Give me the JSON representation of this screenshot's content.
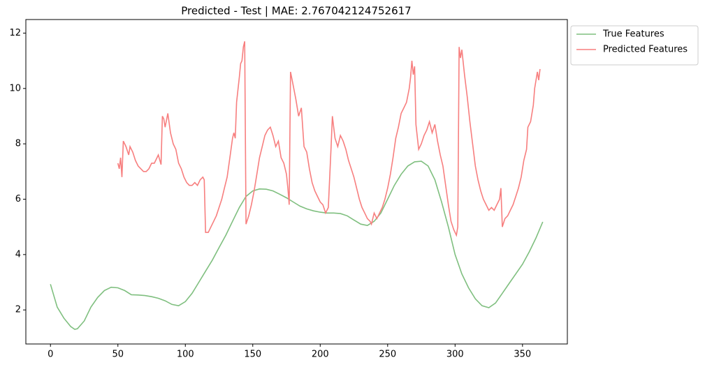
{
  "chart_data": {
    "type": "line",
    "title": "Predicted - Test | MAE: 2.767042124752617",
    "xlim": [
      -18.25,
      383.25
    ],
    "ylim": [
      0.77,
      12.49
    ],
    "xticks": [
      0,
      50,
      100,
      150,
      200,
      250,
      300,
      350
    ],
    "yticks": [
      2,
      4,
      6,
      8,
      10,
      12
    ],
    "legend": "upper-right-outside",
    "series": [
      {
        "name": "True Features",
        "color": "#7fbf7f",
        "x": [
          0,
          5,
          10,
          15,
          18,
          20,
          25,
          30,
          35,
          40,
          45,
          50,
          55,
          60,
          65,
          70,
          75,
          80,
          85,
          90,
          95,
          100,
          105,
          110,
          115,
          120,
          125,
          130,
          135,
          140,
          145,
          150,
          155,
          160,
          165,
          170,
          175,
          180,
          185,
          190,
          195,
          200,
          205,
          210,
          215,
          220,
          225,
          230,
          235,
          240,
          245,
          250,
          255,
          260,
          265,
          270,
          275,
          280,
          285,
          290,
          295,
          300,
          305,
          310,
          315,
          320,
          325,
          330,
          335,
          340,
          345,
          350,
          355,
          360,
          365
        ],
        "values": [
          2.93,
          2.1,
          1.7,
          1.4,
          1.3,
          1.32,
          1.6,
          2.1,
          2.45,
          2.7,
          2.82,
          2.8,
          2.7,
          2.55,
          2.54,
          2.52,
          2.48,
          2.42,
          2.33,
          2.2,
          2.15,
          2.3,
          2.6,
          3.0,
          3.4,
          3.8,
          4.25,
          4.7,
          5.2,
          5.7,
          6.1,
          6.3,
          6.37,
          6.36,
          6.3,
          6.18,
          6.05,
          5.9,
          5.75,
          5.65,
          5.58,
          5.53,
          5.5,
          5.5,
          5.48,
          5.4,
          5.25,
          5.1,
          5.05,
          5.2,
          5.5,
          6.0,
          6.5,
          6.9,
          7.2,
          7.35,
          7.37,
          7.2,
          6.7,
          5.9,
          5.0,
          4.0,
          3.3,
          2.8,
          2.4,
          2.15,
          2.08,
          2.25,
          2.6,
          2.95,
          3.3,
          3.65,
          4.1,
          4.6,
          5.18
        ]
      },
      {
        "name": "Predicted Features",
        "color": "#f77f7f",
        "x": [
          50,
          51,
          52,
          53,
          54,
          56,
          58,
          59,
          61,
          63,
          65,
          67,
          69,
          71,
          73,
          75,
          77,
          79,
          80,
          82,
          83,
          84,
          85,
          87,
          89,
          91,
          93,
          95,
          97,
          99,
          101,
          103,
          105,
          107,
          109,
          111,
          113,
          114,
          115,
          117,
          119,
          121,
          123,
          125,
          127,
          129,
          131,
          133,
          135,
          136,
          137,
          138,
          140,
          141,
          142,
          143,
          144,
          145,
          147,
          149,
          151,
          153,
          155,
          157,
          159,
          161,
          163,
          165,
          167,
          169,
          171,
          173,
          175,
          176,
          177,
          178,
          180,
          182,
          184,
          186,
          188,
          190,
          192,
          194,
          196,
          198,
          200,
          202,
          204,
          206,
          208,
          209,
          211,
          213,
          215,
          217,
          219,
          221,
          223,
          225,
          227,
          229,
          231,
          233,
          235,
          237,
          238,
          240,
          242,
          244,
          246,
          248,
          250,
          252,
          254,
          256,
          258,
          260,
          262,
          264,
          266,
          267,
          268,
          269,
          270,
          271,
          273,
          275,
          277,
          279,
          281,
          283,
          285,
          287,
          289,
          291,
          293,
          295,
          297,
          299,
          301,
          302,
          303,
          304,
          305,
          307,
          309,
          311,
          313,
          315,
          317,
          319,
          321,
          323,
          325,
          327,
          329,
          331,
          333,
          334,
          335,
          337,
          339,
          341,
          343,
          345,
          347,
          349,
          351,
          353,
          354,
          356,
          358,
          359,
          361,
          362,
          363
        ],
        "values": [
          7.3,
          7.1,
          7.5,
          6.8,
          8.1,
          7.9,
          7.6,
          7.9,
          7.7,
          7.4,
          7.2,
          7.1,
          7.0,
          7.0,
          7.1,
          7.3,
          7.3,
          7.5,
          7.6,
          7.25,
          9.0,
          8.9,
          8.6,
          9.1,
          8.4,
          8.0,
          7.8,
          7.3,
          7.1,
          6.8,
          6.6,
          6.5,
          6.5,
          6.6,
          6.5,
          6.7,
          6.8,
          6.7,
          4.8,
          4.8,
          5.0,
          5.2,
          5.4,
          5.7,
          6.0,
          6.4,
          6.8,
          7.5,
          8.2,
          8.4,
          8.2,
          9.5,
          10.4,
          10.9,
          11.0,
          11.5,
          11.7,
          5.1,
          5.4,
          5.8,
          6.3,
          6.9,
          7.5,
          7.9,
          8.3,
          8.5,
          8.6,
          8.3,
          7.9,
          8.1,
          7.5,
          7.3,
          6.9,
          6.4,
          5.8,
          10.6,
          10.1,
          9.6,
          9.0,
          9.3,
          7.9,
          7.7,
          7.1,
          6.6,
          6.3,
          6.1,
          5.9,
          5.8,
          5.5,
          5.7,
          7.8,
          9.0,
          8.2,
          7.9,
          8.3,
          8.1,
          7.8,
          7.4,
          7.1,
          6.8,
          6.4,
          6.0,
          5.7,
          5.5,
          5.3,
          5.2,
          5.1,
          5.5,
          5.3,
          5.5,
          5.7,
          6.0,
          6.4,
          6.9,
          7.5,
          8.2,
          8.6,
          9.1,
          9.3,
          9.5,
          10.0,
          10.4,
          11.0,
          10.5,
          10.8,
          8.7,
          7.8,
          8.0,
          8.3,
          8.5,
          8.8,
          8.4,
          8.7,
          8.1,
          7.6,
          7.2,
          6.5,
          5.8,
          5.2,
          4.9,
          4.7,
          5.0,
          11.5,
          11.1,
          11.4,
          10.5,
          9.7,
          8.8,
          8.0,
          7.2,
          6.7,
          6.3,
          6.0,
          5.8,
          5.6,
          5.7,
          5.6,
          5.8,
          6.0,
          6.4,
          5.0,
          5.3,
          5.4,
          5.6,
          5.8,
          6.1,
          6.4,
          6.8,
          7.4,
          7.8,
          8.6,
          8.8,
          9.4,
          10.0,
          10.6,
          10.3,
          10.7
        ]
      }
    ]
  }
}
